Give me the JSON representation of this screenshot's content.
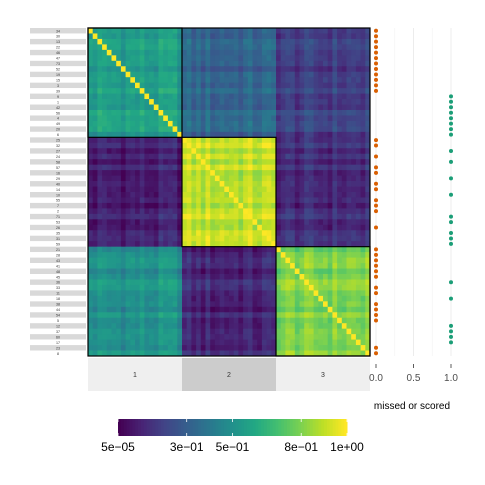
{
  "chart_data": [
    {
      "type": "heatmap",
      "n_items": 60,
      "row_labels": [
        "34",
        "30",
        "13",
        "22",
        "46",
        "47",
        "73",
        "52",
        "19",
        "15",
        "3",
        "39",
        "9",
        "1",
        "42",
        "56",
        "4",
        "49",
        "20",
        "6",
        "25",
        "32",
        "27",
        "24",
        "58",
        "57",
        "16",
        "29",
        "40",
        "14",
        "10",
        "55",
        "7",
        "2",
        "71",
        "53",
        "26",
        "35",
        "31",
        "59",
        "21",
        "28",
        "43",
        "41",
        "48",
        "45",
        "36",
        "33",
        "11",
        "18",
        "38",
        "44",
        "54",
        "5",
        "12",
        "37",
        "60",
        "17",
        "23",
        "8"
      ],
      "clusters": [
        {
          "label": "1",
          "size": 20
        },
        {
          "label": "2",
          "size": 20
        },
        {
          "label": "3",
          "size": 20
        }
      ],
      "block_means": [
        [
          0.55,
          0.32,
          0.18
        ],
        [
          0.08,
          0.9,
          0.12
        ],
        [
          0.5,
          0.1,
          0.8
        ]
      ],
      "colorbar": {
        "tick_labels": [
          "5e−05",
          "3e−01",
          "5e−01",
          "8e−01",
          "1e+00"
        ],
        "tick_positions": [
          0.0,
          0.3,
          0.5,
          0.8,
          1.0
        ],
        "colors": [
          "#440154",
          "#3b528b",
          "#21918c",
          "#5ec962",
          "#fde725"
        ]
      }
    },
    {
      "type": "scatter",
      "xlabel": "missed or scored",
      "x_ticks": [
        "0.0",
        "0.5",
        "1.0"
      ],
      "x_tick_values": [
        0.0,
        0.5,
        1.0
      ],
      "xlim": [
        0,
        1
      ],
      "series": [
        {
          "color": "#d95f02",
          "value": 0.0
        },
        {
          "color": "#1b9e77",
          "value": 1.0
        }
      ],
      "values": [
        0,
        0,
        0,
        0,
        0,
        0,
        0,
        0,
        0,
        0,
        0,
        0,
        1,
        1,
        1,
        1,
        1,
        1,
        1,
        1,
        0,
        0,
        1,
        0,
        1,
        0,
        0,
        1,
        0,
        0,
        1,
        0,
        0,
        0,
        1,
        1,
        0,
        1,
        1,
        1,
        0,
        0,
        0,
        0,
        0,
        0,
        1,
        0,
        0,
        1,
        0,
        0,
        0,
        0,
        1,
        1,
        1,
        1,
        0,
        0
      ]
    }
  ]
}
